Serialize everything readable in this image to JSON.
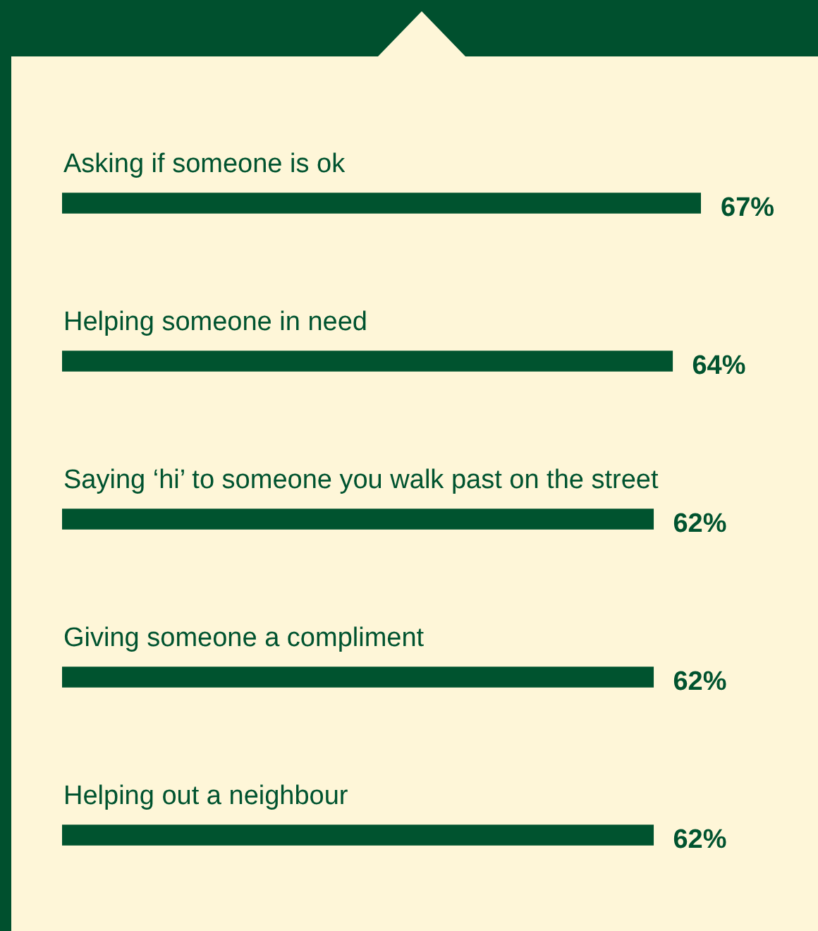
{
  "chart_data": {
    "type": "bar",
    "orientation": "horizontal",
    "categories": [
      "Asking if someone is ok",
      "Helping someone in need",
      "Saying ‘hi’ to someone you walk past on the street",
      "Giving someone a compliment",
      "Helping out a neighbour"
    ],
    "values": [
      67,
      64,
      62,
      62,
      62
    ],
    "value_labels": [
      "67%",
      "64%",
      "62%",
      "62%",
      "62%"
    ],
    "color": "#00532f",
    "legend": false
  }
}
